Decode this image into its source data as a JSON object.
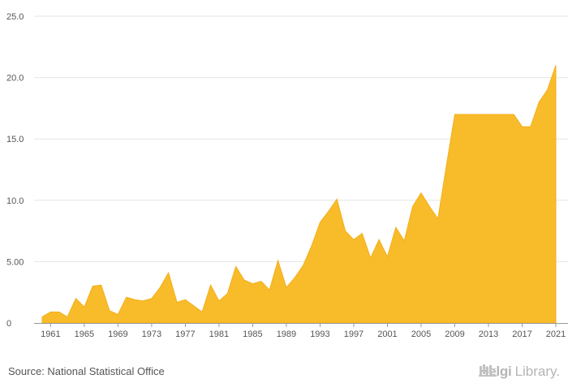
{
  "chart_data": {
    "type": "area",
    "title": "",
    "xlabel": "",
    "ylabel": "",
    "color": "#f8bb2a",
    "line_color": "#f2b01c",
    "grid": true,
    "ylim": [
      0,
      25
    ],
    "xlim": [
      1960,
      2021
    ],
    "y_ticks": [
      {
        "value": 0,
        "label": "0"
      },
      {
        "value": 5,
        "label": "5.00"
      },
      {
        "value": 10,
        "label": "10.0"
      },
      {
        "value": 15,
        "label": "15.0"
      },
      {
        "value": 20,
        "label": "20.0"
      },
      {
        "value": 25,
        "label": "25.0"
      }
    ],
    "x_ticks": [
      {
        "value": 1961,
        "label": "1961"
      },
      {
        "value": 1965,
        "label": "1965"
      },
      {
        "value": 1969,
        "label": "1969"
      },
      {
        "value": 1973,
        "label": "1973"
      },
      {
        "value": 1977,
        "label": "1977"
      },
      {
        "value": 1981,
        "label": "1981"
      },
      {
        "value": 1985,
        "label": "1985"
      },
      {
        "value": 1989,
        "label": "1989"
      },
      {
        "value": 1993,
        "label": "1993"
      },
      {
        "value": 1997,
        "label": "1997"
      },
      {
        "value": 2001,
        "label": "2001"
      },
      {
        "value": 2005,
        "label": "2005"
      },
      {
        "value": 2009,
        "label": "2009"
      },
      {
        "value": 2013,
        "label": "2013"
      },
      {
        "value": 2017,
        "label": "2017"
      },
      {
        "value": 2021,
        "label": "2021"
      }
    ],
    "x": [
      1960,
      1961,
      1962,
      1963,
      1964,
      1965,
      1966,
      1967,
      1968,
      1969,
      1970,
      1971,
      1972,
      1973,
      1974,
      1975,
      1976,
      1977,
      1978,
      1979,
      1980,
      1981,
      1982,
      1983,
      1984,
      1985,
      1986,
      1987,
      1988,
      1989,
      1990,
      1991,
      1992,
      1993,
      1994,
      1995,
      1996,
      1997,
      1998,
      1999,
      2000,
      2001,
      2002,
      2003,
      2004,
      2005,
      2006,
      2007,
      2008,
      2009,
      2010,
      2011,
      2012,
      2013,
      2014,
      2015,
      2016,
      2017,
      2018,
      2019,
      2020,
      2021
    ],
    "values": [
      0.5,
      0.9,
      0.9,
      0.5,
      2.0,
      1.3,
      3.0,
      3.1,
      1.0,
      0.7,
      2.1,
      1.9,
      1.8,
      2.0,
      2.9,
      4.1,
      1.7,
      1.9,
      1.4,
      0.9,
      3.1,
      1.8,
      2.4,
      4.6,
      3.5,
      3.2,
      3.4,
      2.7,
      5.1,
      2.9,
      3.7,
      4.7,
      6.3,
      8.2,
      9.1,
      10.1,
      7.5,
      6.8,
      7.3,
      5.3,
      6.8,
      5.4,
      7.8,
      6.7,
      9.5,
      10.6,
      9.5,
      8.5,
      12.8,
      17.0,
      17.0,
      17.0,
      17.0,
      17.0,
      17.0,
      17.0,
      17.0,
      16.0,
      16.0,
      18.0,
      19.0,
      21.0
    ]
  },
  "footer": {
    "source": "Source: National Statistical Office",
    "brand_part_a": "Helgi",
    "brand_part_b": "Library."
  }
}
